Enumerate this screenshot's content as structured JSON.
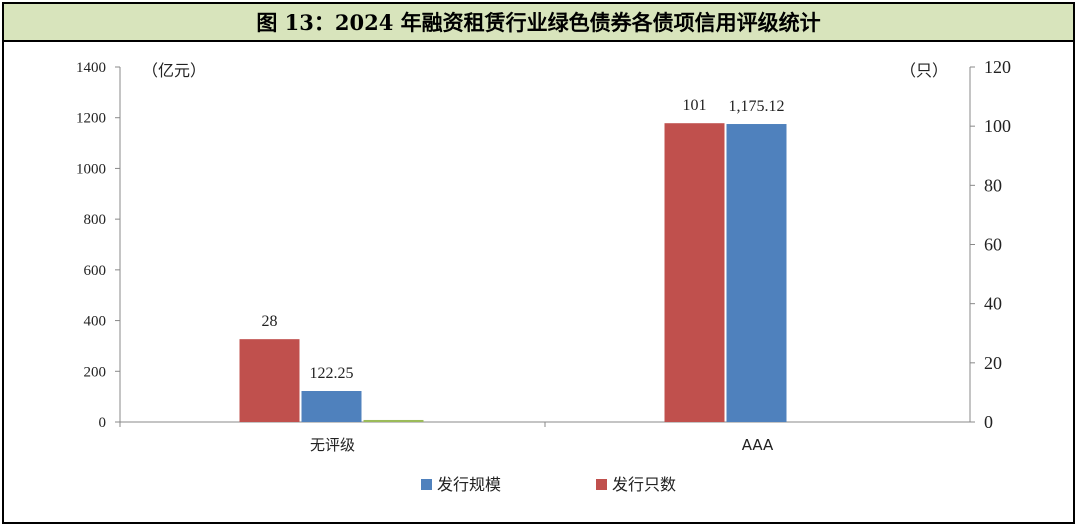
{
  "title": "图 13：2024 年融资租赁行业绿色债券各债项信用评级统计",
  "chart_data": {
    "type": "bar",
    "categories": [
      "无评级",
      "AAA"
    ],
    "left_axis": {
      "unit": "（亿元）",
      "min": 0,
      "max": 1400,
      "ticks": [
        0,
        200,
        400,
        600,
        800,
        1000,
        1200,
        1400
      ]
    },
    "right_axis": {
      "unit": "（只）",
      "min": 0,
      "max": 120,
      "ticks": [
        0,
        20,
        40,
        60,
        80,
        100,
        120
      ]
    },
    "series": [
      {
        "name": "发行只数",
        "axis": "right",
        "color": "#c0504d",
        "values": [
          28,
          101
        ],
        "labels": [
          "28",
          "101"
        ]
      },
      {
        "name": "发行规模",
        "axis": "left",
        "color": "#4f81bd",
        "values": [
          122.25,
          1175.12
        ],
        "labels": [
          "122.25",
          "1,175.12"
        ]
      },
      {
        "name": "",
        "axis": "left",
        "color": "#9bbb59",
        "values": [
          8,
          0
        ],
        "labels": [
          "",
          ""
        ]
      }
    ],
    "legend": {
      "placement": "bottom",
      "items": [
        {
          "name": "发行规模",
          "color": "#4f81bd"
        },
        {
          "name": "发行只数",
          "color": "#c0504d"
        }
      ]
    },
    "grid": false
  }
}
